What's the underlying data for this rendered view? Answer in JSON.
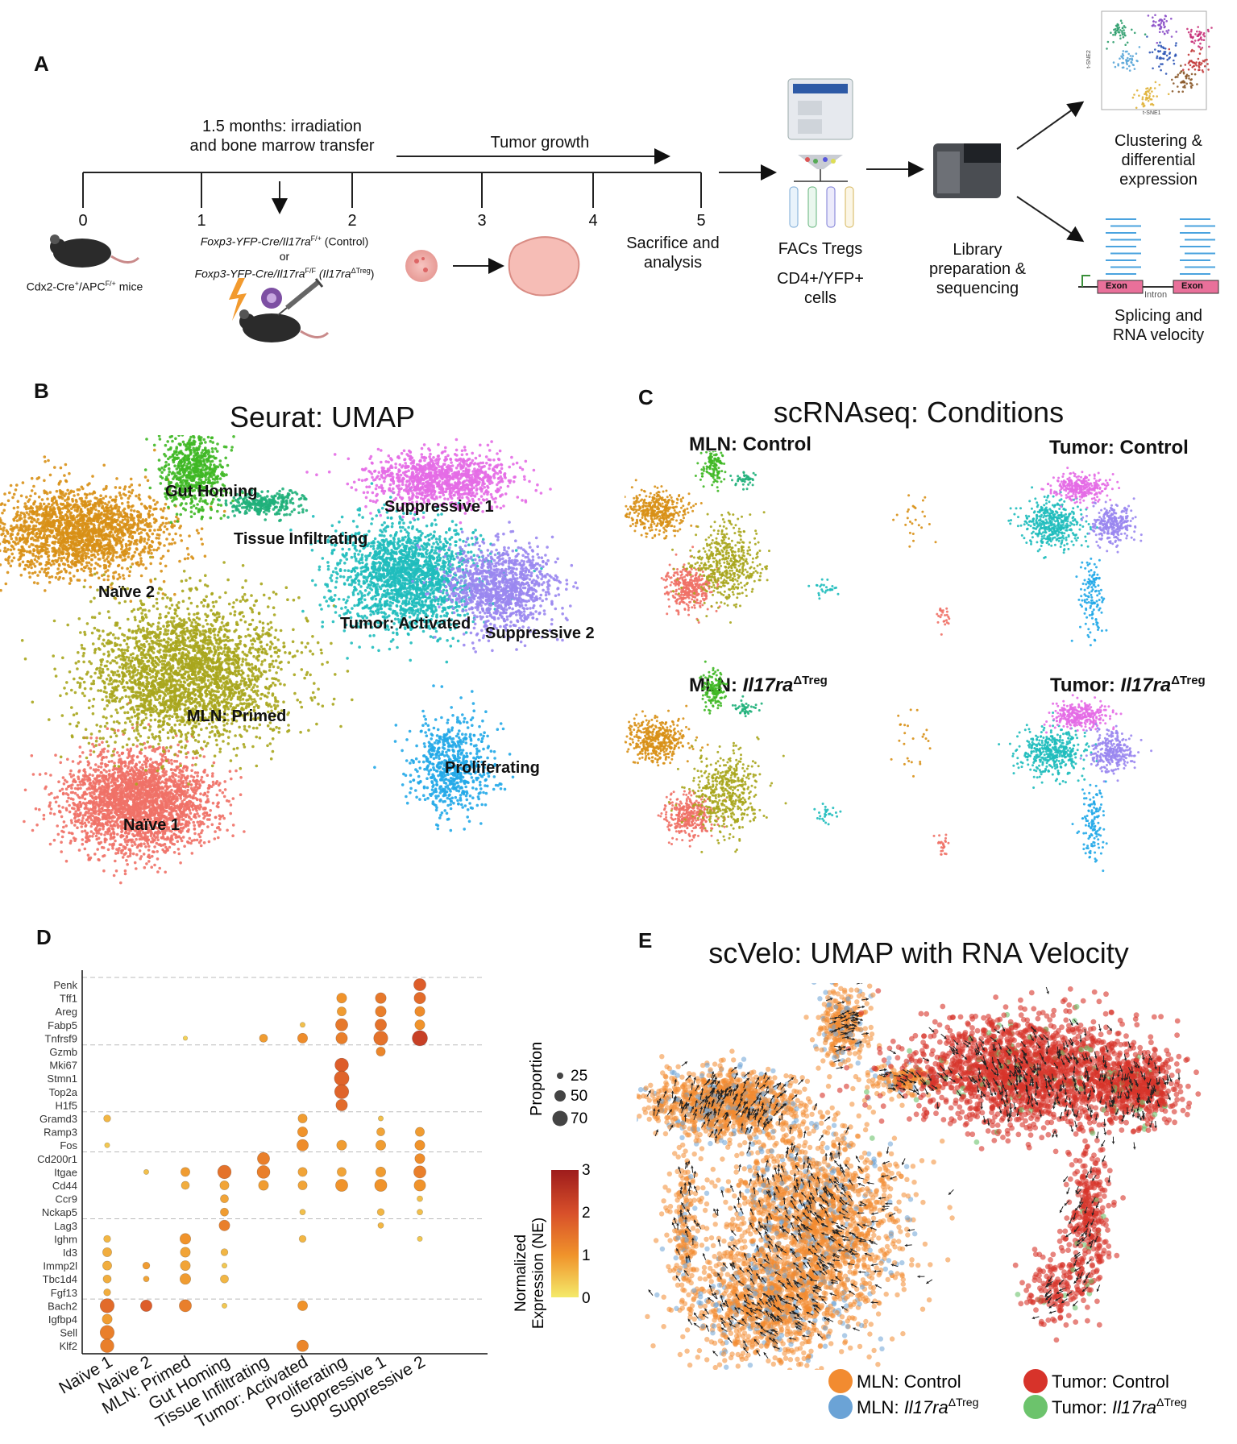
{
  "panelA": {
    "label": "A",
    "irradiation": "1.5 months: irradiation and bone marrow transfer",
    "irradiation_l1": "1.5 months: irradiation",
    "irradiation_l2": "and bone marrow transfer",
    "tumor_growth": "Tumor growth",
    "ticks": [
      "0",
      "1",
      "2",
      "3",
      "4",
      "5"
    ],
    "mice": "Cdx2-Cre⁺/APC^F/+ mice",
    "mice_a": "Cdx2-Cre",
    "mice_b": "/APC",
    "mice_c": " mice",
    "sup_plus": "+",
    "sup_fp": "F/+",
    "geno1": "Foxp3-YFP-Cre/Il17ra",
    "geno1_sup": "F/+",
    "geno1_tail": " (Control)",
    "geno_or": "or",
    "geno2": "Foxp3-YFP-Cre/Il17ra",
    "geno2_sup": "F/F",
    "geno2_tail": " (Il17ra",
    "geno2_sup2": "ΔTreg",
    "geno2_close": ")",
    "sacrifice": "Sacrifice and analysis",
    "sacrifice_l1": "Sacrifice and",
    "sacrifice_l2": "analysis",
    "facs": "FACs Tregs",
    "cells_l1": "CD4+/YFP+",
    "cells_l2": "cells",
    "library_l1": "Library",
    "library_l2": "preparation &",
    "library_l3": "sequencing",
    "cluster_l1": "Clustering &",
    "cluster_l2": "differential",
    "cluster_l3": "expression",
    "splice_l1": "Splicing and",
    "splice_l2": "RNA velocity",
    "exon": "Exon",
    "intron": "Intron",
    "tsne1": "t-SNE1",
    "tsne2": "t-SNE2"
  },
  "panelB": {
    "label": "B",
    "title": "Seurat: UMAP",
    "clusters": [
      "Gut Homing",
      "Suppressive 1",
      "Tissue Infiltrating",
      "Naïve 2",
      "Tumor: Activated",
      "Suppressive 2",
      "MLN: Primed",
      "Proliferating",
      "Naïve 1"
    ]
  },
  "panelC": {
    "label": "C",
    "title": "scRNAseq: Conditions",
    "mln_control": "MLN: Control",
    "tumor_control": "Tumor: Control",
    "mln_ko": "MLN: ",
    "tumor_ko": "Tumor: ",
    "ko_gene": "Il17ra",
    "ko_sup": "ΔTreg"
  },
  "panelD": {
    "label": "D",
    "proportion_title": "Proportion",
    "proportion_values": [
      "25",
      "50",
      "70"
    ],
    "expression_title_l1": "Normalized",
    "expression_title_l2": "Expression (NE)",
    "expression_ticks": [
      "3",
      "2",
      "1",
      "0"
    ],
    "colors": {
      "low": "#f6e05e",
      "mid": "#f0932b",
      "high": "#a31d1d"
    }
  },
  "chart_data": {
    "type": "dotplot",
    "categories": [
      "Naïve 1",
      "Naïve 2",
      "MLN: Primed",
      "Gut Homing",
      "Tissue Infiltrating",
      "Tumor: Activated",
      "Proliferating",
      "Suppressive 1",
      "Suppressive 2"
    ],
    "genes": [
      "Penk",
      "Tff1",
      "Areg",
      "Fabp5",
      "Tnfrsf9",
      "Gzmb",
      "Mki67",
      "Stmn1",
      "Top2a",
      "H1f5",
      "Gramd3",
      "Ramp3",
      "Fos",
      "Cd200r1",
      "Itgae",
      "Cd44",
      "Ccr9",
      "Nckap5",
      "Lag3",
      "Ighm",
      "Id3",
      "Immp2l",
      "Tbc1d4",
      "Fgf13",
      "Bach2",
      "Igfbp4",
      "Sell",
      "Klf2"
    ],
    "gene_group_breaks_after": [
      "Tnfrsf9",
      "H1f5",
      "Fos",
      "Nckap5",
      "Fgf13"
    ],
    "proportion_legend": [
      25,
      50,
      70
    ],
    "expression_range": [
      0,
      3
    ],
    "points": [
      [
        "Penk",
        "Suppressive 2",
        45,
        1.8
      ],
      [
        "Tff1",
        "Proliferating",
        30,
        1.0
      ],
      [
        "Tff1",
        "Suppressive 1",
        35,
        1.4
      ],
      [
        "Tff1",
        "Suppressive 2",
        40,
        1.6
      ],
      [
        "Areg",
        "Proliferating",
        25,
        0.9
      ],
      [
        "Areg",
        "Suppressive 1",
        35,
        1.3
      ],
      [
        "Areg",
        "Suppressive 2",
        30,
        1.1
      ],
      [
        "Fabp5",
        "Tumor: Activated",
        8,
        0.5
      ],
      [
        "Fabp5",
        "Proliferating",
        45,
        1.4
      ],
      [
        "Fabp5",
        "Suppressive 1",
        40,
        1.5
      ],
      [
        "Fabp5",
        "Suppressive 2",
        30,
        1.0
      ],
      [
        "Tnfrsf9",
        "MLN: Primed",
        6,
        0.3
      ],
      [
        "Tnfrsf9",
        "Tissue Infiltrating",
        20,
        0.9
      ],
      [
        "Tnfrsf9",
        "Tumor: Activated",
        30,
        1.1
      ],
      [
        "Tnfrsf9",
        "Proliferating",
        40,
        1.3
      ],
      [
        "Tnfrsf9",
        "Suppressive 1",
        60,
        1.5
      ],
      [
        "Tnfrsf9",
        "Suppressive 2",
        70,
        2.3
      ],
      [
        "Gzmb",
        "Suppressive 1",
        25,
        1.2
      ],
      [
        "Mki67",
        "Proliferating",
        55,
        1.8
      ],
      [
        "Stmn1",
        "Proliferating",
        65,
        1.7
      ],
      [
        "Top2a",
        "Proliferating",
        60,
        1.7
      ],
      [
        "H1f5",
        "Proliferating",
        40,
        1.6
      ],
      [
        "Gramd3",
        "Naïve 1",
        15,
        0.6
      ],
      [
        "Gramd3",
        "Tumor: Activated",
        25,
        0.9
      ],
      [
        "Gramd3",
        "Suppressive 1",
        8,
        0.5
      ],
      [
        "Ramp3",
        "Tumor: Activated",
        30,
        1.0
      ],
      [
        "Ramp3",
        "Suppressive 1",
        20,
        0.8
      ],
      [
        "Ramp3",
        "Suppressive 2",
        25,
        0.9
      ],
      [
        "Fos",
        "Naïve 1",
        8,
        0.4
      ],
      [
        "Fos",
        "Tumor: Activated",
        40,
        1.1
      ],
      [
        "Fos",
        "Proliferating",
        30,
        0.9
      ],
      [
        "Fos",
        "Suppressive 1",
        30,
        0.9
      ],
      [
        "Fos",
        "Suppressive 2",
        30,
        1.0
      ],
      [
        "Cd200r1",
        "Tissue Infiltrating",
        45,
        1.3
      ],
      [
        "Cd200r1",
        "Suppressive 2",
        30,
        1.1
      ],
      [
        "Itgae",
        "Naïve 2",
        8,
        0.5
      ],
      [
        "Itgae",
        "MLN: Primed",
        25,
        0.9
      ],
      [
        "Itgae",
        "Gut Homing",
        55,
        1.5
      ],
      [
        "Itgae",
        "Tissue Infiltrating",
        50,
        1.3
      ],
      [
        "Itgae",
        "Tumor: Activated",
        25,
        0.8
      ],
      [
        "Itgae",
        "Proliferating",
        25,
        0.8
      ],
      [
        "Itgae",
        "Suppressive 1",
        30,
        0.9
      ],
      [
        "Itgae",
        "Suppressive 2",
        45,
        1.3
      ],
      [
        "Cd44",
        "MLN: Primed",
        20,
        0.7
      ],
      [
        "Cd44",
        "Gut Homing",
        25,
        0.8
      ],
      [
        "Cd44",
        "Tissue Infiltrating",
        30,
        0.9
      ],
      [
        "Cd44",
        "Tumor: Activated",
        25,
        0.8
      ],
      [
        "Cd44",
        "Proliferating",
        45,
        1.0
      ],
      [
        "Cd44",
        "Suppressive 1",
        45,
        1.0
      ],
      [
        "Cd44",
        "Suppressive 2",
        40,
        1.0
      ],
      [
        "Ccr9",
        "Gut Homing",
        20,
        0.8
      ],
      [
        "Ccr9",
        "Suppressive 2",
        10,
        0.5
      ],
      [
        "Nckap5",
        "Gut Homing",
        20,
        0.9
      ],
      [
        "Nckap5",
        "Tumor: Activated",
        10,
        0.5
      ],
      [
        "Nckap5",
        "Suppressive 1",
        15,
        0.6
      ],
      [
        "Nckap5",
        "Suppressive 2",
        10,
        0.5
      ],
      [
        "Lag3",
        "Gut Homing",
        35,
        1.3
      ],
      [
        "Lag3",
        "Suppressive 1",
        10,
        0.6
      ],
      [
        "Ighm",
        "Naïve 1",
        15,
        0.6
      ],
      [
        "Ighm",
        "MLN: Primed",
        35,
        1.0
      ],
      [
        "Ighm",
        "Tumor: Activated",
        15,
        0.6
      ],
      [
        "Ighm",
        "Suppressive 2",
        8,
        0.4
      ],
      [
        "Id3",
        "Naïve 1",
        25,
        0.7
      ],
      [
        "Id3",
        "MLN: Primed",
        30,
        0.8
      ],
      [
        "Id3",
        "Gut Homing",
        15,
        0.6
      ],
      [
        "Immp2l",
        "Naïve 1",
        25,
        0.7
      ],
      [
        "Immp2l",
        "Naïve 2",
        15,
        0.9
      ],
      [
        "Immp2l",
        "MLN: Primed",
        30,
        0.8
      ],
      [
        "Immp2l",
        "Gut Homing",
        8,
        0.4
      ],
      [
        "Tbc1d4",
        "Naïve 1",
        20,
        0.7
      ],
      [
        "Tbc1d4",
        "Naïve 2",
        10,
        0.8
      ],
      [
        "Tbc1d4",
        "MLN: Primed",
        35,
        0.9
      ],
      [
        "Tbc1d4",
        "Gut Homing",
        20,
        0.6
      ],
      [
        "Fgf13",
        "Naïve 1",
        15,
        0.7
      ],
      [
        "Bach2",
        "Naïve 1",
        60,
        1.6
      ],
      [
        "Bach2",
        "Naïve 2",
        40,
        1.8
      ],
      [
        "Bach2",
        "MLN: Primed",
        45,
        1.3
      ],
      [
        "Bach2",
        "Gut Homing",
        8,
        0.4
      ],
      [
        "Bach2",
        "Tumor: Activated",
        30,
        1.0
      ],
      [
        "Igfbp4",
        "Naïve 1",
        30,
        0.9
      ],
      [
        "Sell",
        "Naïve 1",
        60,
        1.3
      ],
      [
        "Klf2",
        "Naïve 1",
        55,
        1.3
      ],
      [
        "Klf2",
        "Tumor: Activated",
        40,
        1.2
      ]
    ]
  },
  "panelE": {
    "label": "E",
    "title": "scVelo: UMAP with RNA Velocity",
    "legend": {
      "mln_control": "MLN: Control",
      "tumor_control": "Tumor: Control",
      "mln_ko": "MLN: ",
      "tumor_ko": "Tumor: ",
      "ko_gene": "Il17ra",
      "ko_sup": "ΔTreg"
    },
    "colors": {
      "mln_control": "#f28b30",
      "tumor_control": "#d7332a",
      "mln_ko": "#6ba3d6",
      "tumor_ko": "#6cc36c"
    }
  }
}
